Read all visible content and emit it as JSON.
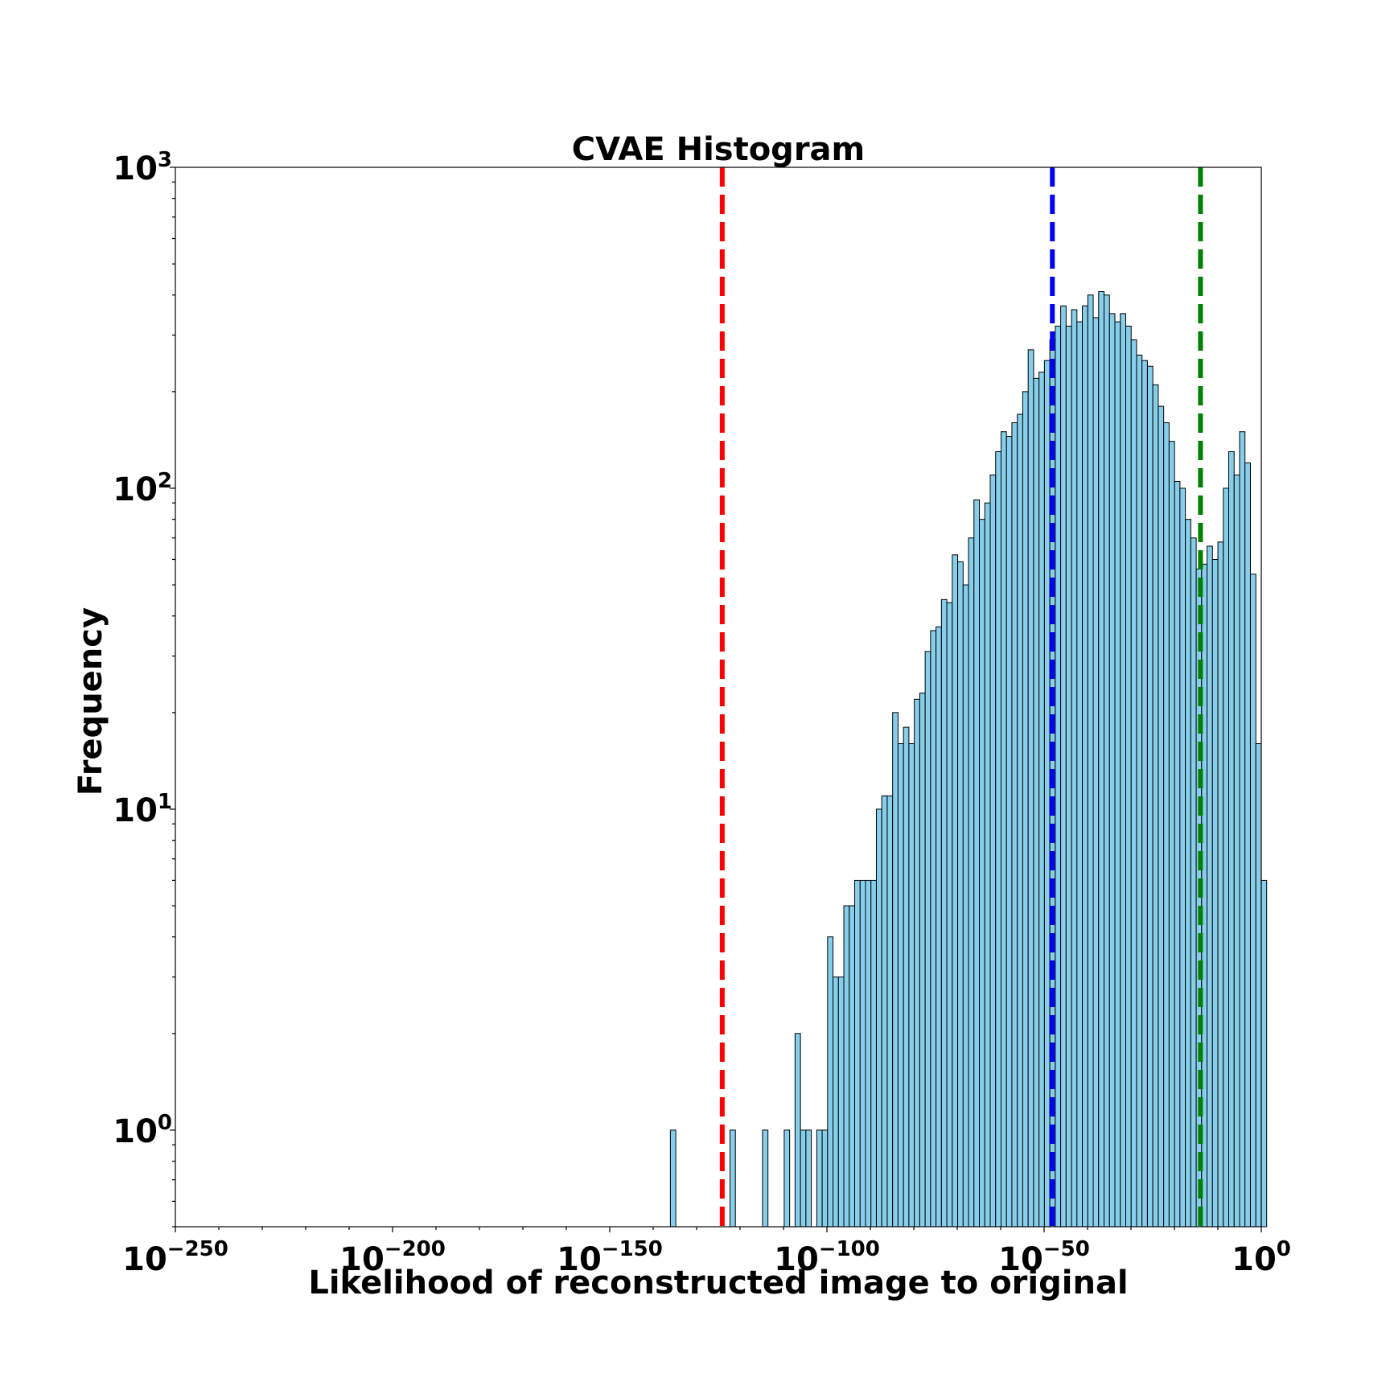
{
  "chart_data": {
    "type": "bar",
    "title": "CVAE Histogram",
    "xlabel": "Likelihood of reconstructed image to original",
    "ylabel": "Frequency",
    "x_scale": "log",
    "y_scale": "log",
    "xlim_log10": [
      -250,
      0
    ],
    "ylim": [
      0.5,
      1000
    ],
    "x_ticks": [
      {
        "base": "10",
        "exp": "−250"
      },
      {
        "base": "10",
        "exp": "−200"
      },
      {
        "base": "10",
        "exp": "−150"
      },
      {
        "base": "10",
        "exp": "−100"
      },
      {
        "base": "10",
        "exp": "−50"
      },
      {
        "base": "10",
        "exp": "0"
      }
    ],
    "y_ticks": [
      {
        "base": "10",
        "exp": "0"
      },
      {
        "base": "10",
        "exp": "1"
      },
      {
        "base": "10",
        "exp": "2"
      },
      {
        "base": "10",
        "exp": "3"
      }
    ],
    "bin_start_log10": -136.04,
    "bin_width_log10": 1.248,
    "bar_color": "#87ceeb",
    "bar_edge_color": "#000000",
    "frequencies": [
      1,
      0,
      0,
      0,
      0,
      0,
      0,
      0,
      0,
      0,
      0,
      1,
      0,
      0,
      0,
      0,
      0,
      1,
      0,
      0,
      0,
      1,
      0,
      2,
      1,
      1,
      0,
      1,
      1,
      4,
      3,
      3,
      5,
      5,
      6,
      6,
      6,
      6,
      10,
      11,
      11,
      20,
      16,
      18,
      16,
      22,
      23,
      31,
      36,
      37,
      45,
      44,
      62,
      59,
      50,
      70,
      92,
      80,
      90,
      110,
      130,
      150,
      145,
      160,
      170,
      200,
      270,
      220,
      230,
      250,
      290,
      320,
      370,
      320,
      360,
      330,
      370,
      400,
      340,
      410,
      400,
      350,
      330,
      350,
      320,
      290,
      260,
      250,
      240,
      210,
      180,
      160,
      140,
      105,
      100,
      80,
      70,
      56,
      58,
      66,
      60,
      68,
      100,
      130,
      110,
      150,
      120,
      54,
      16,
      6
    ],
    "reference_lines": [
      {
        "name": "red-line",
        "x_log10": -124.1,
        "color": "#ff0000"
      },
      {
        "name": "blue-line",
        "x_log10": -48.1,
        "color": "#0000ff"
      },
      {
        "name": "green-line",
        "x_log10": -14.0,
        "color": "#008000"
      }
    ]
  }
}
